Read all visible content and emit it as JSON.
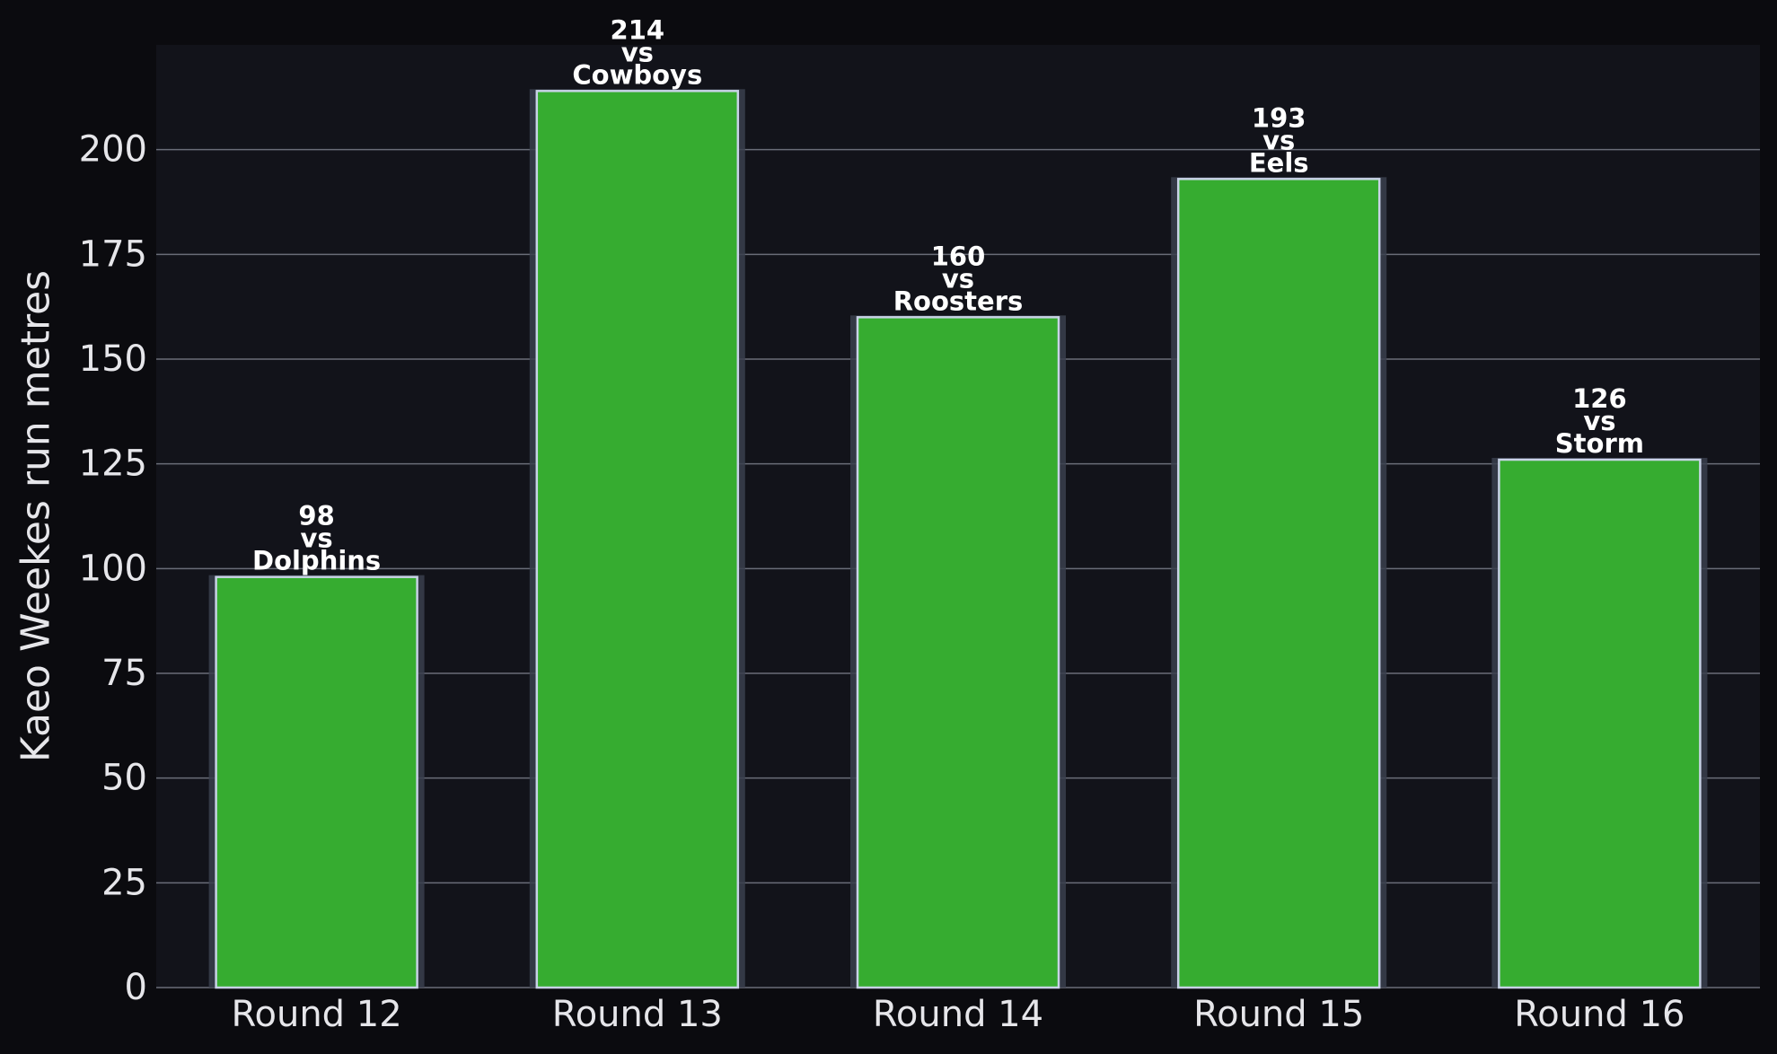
{
  "colors": {
    "figure_background": "#0b0b0f",
    "plot_background": "#12131a",
    "bar_fill": "#36ac30",
    "bar_edge": "#c8d2e6",
    "bar_shadow": "#3a3f4e",
    "gridline": "#6a6d78",
    "text": "#e6e6ea",
    "label_text": "#ffffff"
  },
  "chart_data": {
    "type": "bar",
    "categories": [
      "Round 12",
      "Round 13",
      "Round 14",
      "Round 15",
      "Round 16"
    ],
    "values": [
      98,
      214,
      160,
      193,
      126
    ],
    "opponents": [
      "Dolphins",
      "Cowboys",
      "Roosters",
      "Eels",
      "Storm"
    ],
    "versus_word": "vs",
    "title": "",
    "xlabel": "",
    "ylabel": "Kaeo Weekes run metres",
    "ylim": [
      0,
      225
    ],
    "yticks": [
      0,
      25,
      50,
      75,
      100,
      125,
      150,
      175,
      200
    ],
    "grid": "horizontal",
    "legend": "none"
  }
}
